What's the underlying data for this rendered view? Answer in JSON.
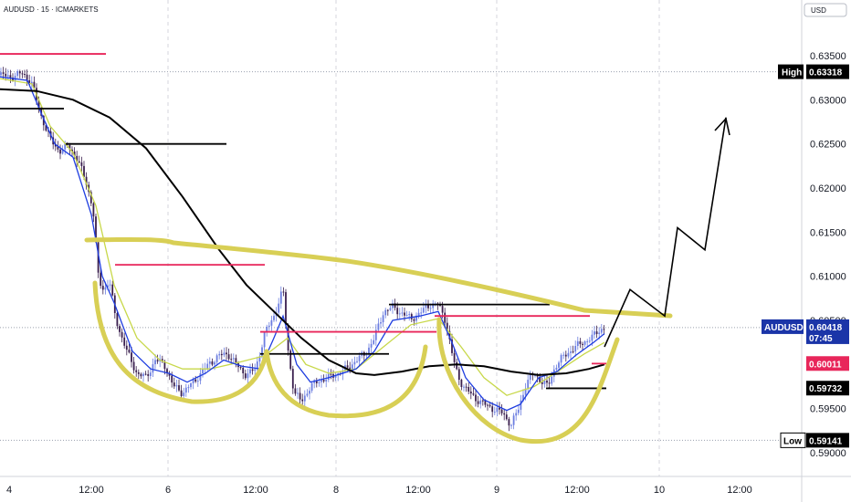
{
  "header": {
    "symbol_line": "AUDUSD · 15 · ICMARKETS",
    "currency_button": "USD"
  },
  "colors": {
    "up_candle": "#6c7ee0",
    "down_candle": "#3a1f4e",
    "ema_fast": "#1e3de0",
    "ema_slow": "#c8d84a",
    "ma_long": "#000000",
    "pattern": "#d8cf55",
    "red_lines": "#e8265a",
    "price_tag": "#1b35a8",
    "prev_tag": "#e8265a",
    "grid": "#d4d6dc"
  },
  "chart_data": {
    "type": "candlestick",
    "title": "",
    "ylim": [
      0.589,
      0.6365
    ],
    "y_ticks": [
      "0.63500",
      "0.63000",
      "0.62500",
      "0.62000",
      "0.61500",
      "0.61000",
      "0.60500",
      "0.60000",
      "0.59500",
      "0.59000"
    ],
    "x_ticks": [
      "4",
      "12:00",
      "6",
      "12:00",
      "8",
      "12:00",
      "9",
      "12:00",
      "10",
      "12:00"
    ],
    "labels": {
      "high": {
        "label": "High",
        "value": "0.63318"
      },
      "low": {
        "label": "Low",
        "value": "0.59141"
      },
      "last_price": {
        "label": "AUDUSD",
        "value": "0.60418",
        "countdown": "07:45"
      },
      "red_level": {
        "value": "0.60011"
      },
      "black_level": {
        "value": "0.59732"
      }
    },
    "price_path": [
      [
        0,
        0.6328
      ],
      [
        12,
        0.6326
      ],
      [
        25,
        0.633
      ],
      [
        35,
        0.6318
      ],
      [
        45,
        0.6282
      ],
      [
        55,
        0.6255
      ],
      [
        65,
        0.6242
      ],
      [
        75,
        0.6248
      ],
      [
        85,
        0.6232
      ],
      [
        95,
        0.6205
      ],
      [
        102,
        0.6175
      ],
      [
        108,
        0.6095
      ],
      [
        114,
        0.6085
      ],
      [
        120,
        0.6095
      ],
      [
        126,
        0.6055
      ],
      [
        132,
        0.6035
      ],
      [
        140,
        0.6012
      ],
      [
        150,
        0.599
      ],
      [
        160,
        0.5985
      ],
      [
        170,
        0.6005
      ],
      [
        180,
        0.6
      ],
      [
        190,
        0.5975
      ],
      [
        200,
        0.5968
      ],
      [
        210,
        0.5978
      ],
      [
        220,
        0.599
      ],
      [
        230,
        0.6002
      ],
      [
        240,
        0.601
      ],
      [
        250,
        0.6012
      ],
      [
        260,
        0.5998
      ],
      [
        270,
        0.5988
      ],
      [
        280,
        0.5995
      ],
      [
        290,
        0.6035
      ],
      [
        300,
        0.6055
      ],
      [
        310,
        0.6085
      ],
      [
        315,
        0.602
      ],
      [
        322,
        0.5968
      ],
      [
        330,
        0.5958
      ],
      [
        340,
        0.5975
      ],
      [
        350,
        0.5982
      ],
      [
        360,
        0.5985
      ],
      [
        370,
        0.599
      ],
      [
        380,
        0.5995
      ],
      [
        390,
        0.6005
      ],
      [
        400,
        0.6012
      ],
      [
        410,
        0.603
      ],
      [
        420,
        0.606
      ],
      [
        430,
        0.6065
      ],
      [
        440,
        0.6058
      ],
      [
        450,
        0.6052
      ],
      [
        460,
        0.6058
      ],
      [
        470,
        0.6068
      ],
      [
        480,
        0.6068
      ],
      [
        488,
        0.605
      ],
      [
        495,
        0.6012
      ],
      [
        502,
        0.5985
      ],
      [
        510,
        0.5972
      ],
      [
        520,
        0.5962
      ],
      [
        530,
        0.5955
      ],
      [
        540,
        0.595
      ],
      [
        550,
        0.5945
      ],
      [
        560,
        0.5932
      ],
      [
        568,
        0.595
      ],
      [
        576,
        0.5978
      ],
      [
        585,
        0.599
      ],
      [
        592,
        0.5982
      ],
      [
        600,
        0.5975
      ],
      [
        608,
        0.5998
      ],
      [
        618,
        0.601
      ],
      [
        628,
        0.6018
      ],
      [
        638,
        0.6025
      ],
      [
        648,
        0.603
      ],
      [
        655,
        0.6038
      ],
      [
        662,
        0.6042
      ]
    ],
    "ema_fast_path": [
      [
        0,
        0.6326
      ],
      [
        30,
        0.6322
      ],
      [
        45,
        0.6285
      ],
      [
        60,
        0.625
      ],
      [
        80,
        0.6235
      ],
      [
        100,
        0.617
      ],
      [
        112,
        0.61
      ],
      [
        125,
        0.607
      ],
      [
        145,
        0.6015
      ],
      [
        165,
        0.5995
      ],
      [
        185,
        0.599
      ],
      [
        205,
        0.598
      ],
      [
        225,
        0.599
      ],
      [
        245,
        0.6005
      ],
      [
        265,
        0.5998
      ],
      [
        285,
        0.5995
      ],
      [
        300,
        0.603
      ],
      [
        310,
        0.6055
      ],
      [
        325,
        0.6
      ],
      [
        340,
        0.598
      ],
      [
        360,
        0.5985
      ],
      [
        390,
        0.5995
      ],
      [
        410,
        0.6015
      ],
      [
        430,
        0.605
      ],
      [
        460,
        0.6055
      ],
      [
        480,
        0.606
      ],
      [
        495,
        0.6025
      ],
      [
        510,
        0.5985
      ],
      [
        530,
        0.596
      ],
      [
        555,
        0.5948
      ],
      [
        570,
        0.5955
      ],
      [
        590,
        0.5985
      ],
      [
        610,
        0.5992
      ],
      [
        630,
        0.601
      ],
      [
        650,
        0.6025
      ],
      [
        662,
        0.6035
      ]
    ],
    "ema_slow_path": [
      [
        0,
        0.6324
      ],
      [
        35,
        0.6318
      ],
      [
        55,
        0.627
      ],
      [
        80,
        0.624
      ],
      [
        105,
        0.618
      ],
      [
        125,
        0.609
      ],
      [
        150,
        0.603
      ],
      [
        175,
        0.6005
      ],
      [
        200,
        0.5995
      ],
      [
        230,
        0.5995
      ],
      [
        260,
        0.6002
      ],
      [
        290,
        0.601
      ],
      [
        315,
        0.603
      ],
      [
        335,
        0.6
      ],
      [
        360,
        0.599
      ],
      [
        390,
        0.5995
      ],
      [
        420,
        0.602
      ],
      [
        450,
        0.6045
      ],
      [
        480,
        0.6052
      ],
      [
        505,
        0.602
      ],
      [
        530,
        0.5985
      ],
      [
        555,
        0.5965
      ],
      [
        585,
        0.5975
      ],
      [
        615,
        0.5995
      ],
      [
        640,
        0.6012
      ],
      [
        662,
        0.6025
      ]
    ],
    "ma_long_path": [
      [
        0,
        0.6312
      ],
      [
        40,
        0.631
      ],
      [
        80,
        0.63
      ],
      [
        120,
        0.628
      ],
      [
        160,
        0.6245
      ],
      [
        200,
        0.619
      ],
      [
        240,
        0.613
      ],
      [
        270,
        0.609
      ],
      [
        300,
        0.606
      ],
      [
        330,
        0.603
      ],
      [
        360,
        0.6005
      ],
      [
        390,
        0.599
      ],
      [
        410,
        0.5988
      ],
      [
        440,
        0.5992
      ],
      [
        470,
        0.5998
      ],
      [
        500,
        0.6
      ],
      [
        530,
        0.5998
      ],
      [
        560,
        0.5992
      ],
      [
        590,
        0.5988
      ],
      [
        620,
        0.599
      ],
      [
        645,
        0.5995
      ],
      [
        662,
        0.6
      ]
    ],
    "projection_path": [
      [
        662,
        0.602
      ],
      [
        690,
        0.6085
      ],
      [
        728,
        0.6055
      ],
      [
        742,
        0.6155
      ],
      [
        772,
        0.613
      ],
      [
        795,
        0.628
      ]
    ],
    "black_segments": [
      {
        "x1": 0,
        "x2": 70,
        "y": 0.629
      },
      {
        "x1": 72,
        "x2": 248,
        "y": 0.625
      },
      {
        "x1": 285,
        "x2": 426,
        "y": 0.6012
      },
      {
        "x1": 426,
        "x2": 602,
        "y": 0.6068
      },
      {
        "x1": 598,
        "x2": 664,
        "y": 0.5973
      }
    ],
    "red_segments": [
      {
        "x1": 0,
        "x2": 116,
        "y": 0.6352
      },
      {
        "x1": 126,
        "x2": 290,
        "y": 0.6113
      },
      {
        "x1": 285,
        "x2": 478,
        "y": 0.6037
      },
      {
        "x1": 476,
        "x2": 646,
        "y": 0.6055
      },
      {
        "x1": 648,
        "x2": 664,
        "y": 0.6001
      }
    ]
  }
}
